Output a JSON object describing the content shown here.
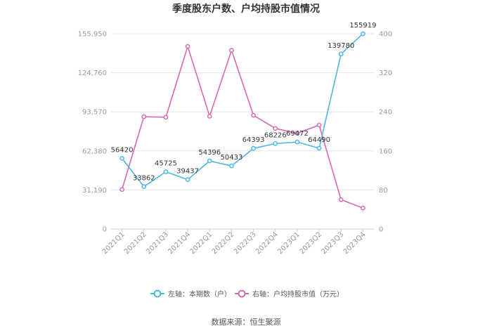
{
  "chart_data": {
    "type": "line",
    "title": "季度股东户数、户均持股市值情况",
    "categories": [
      "2021Q1",
      "2021Q2",
      "2021Q3",
      "2021Q4",
      "2022Q1",
      "2022Q2",
      "2022Q3",
      "2022Q4",
      "2023Q1",
      "2023Q2",
      "2023Q3",
      "2023Q4"
    ],
    "left_axis": {
      "ylim": [
        0,
        155950
      ],
      "ticks": [
        "0",
        "31,190",
        "62,380",
        "93,570",
        "124,760",
        "155,950"
      ],
      "tick_values": [
        0,
        31190,
        62380,
        93570,
        124760,
        155950
      ]
    },
    "right_axis": {
      "ylim": [
        0,
        400
      ],
      "ticks": [
        "0",
        "80",
        "160",
        "240",
        "320",
        "400"
      ],
      "tick_values": [
        0,
        80,
        160,
        240,
        320,
        400
      ]
    },
    "series": [
      {
        "name": "左轴：本期数（户）",
        "axis": "left",
        "color": "#4db6e6",
        "values": [
          56420,
          33862,
          45725,
          39437,
          54396,
          50433,
          64393,
          68226,
          69472,
          64490,
          139780,
          155919
        ],
        "labels": [
          "56420",
          "33862",
          "45725",
          "39437",
          "54396",
          "50433",
          "64393",
          "68226",
          "69472",
          "64490",
          "139780",
          "155919"
        ]
      },
      {
        "name": "右轴：户均持股市值（万元）",
        "axis": "right",
        "color": "#d36bb0",
        "values": [
          81,
          230,
          229,
          374,
          231,
          366,
          233,
          206,
          196,
          213,
          60,
          43
        ]
      }
    ],
    "grid": true,
    "legend_position": "bottom"
  },
  "source": "数据来源：恒生聚源"
}
